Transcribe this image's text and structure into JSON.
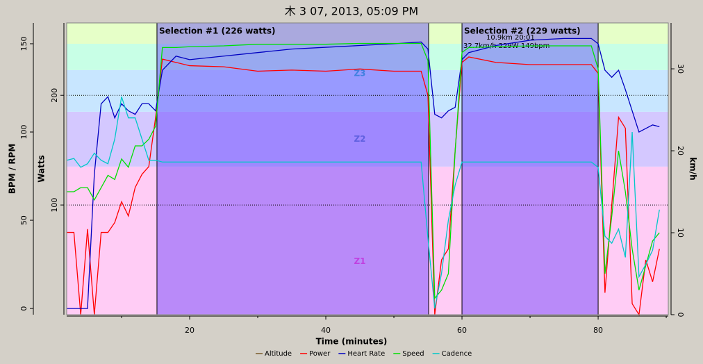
{
  "chart_data": {
    "type": "line",
    "title": "木 3 07, 2013, 05:09 PM",
    "x_label": "Time (minutes)",
    "y_label": "BPM / RPM",
    "y2_label": "Watts",
    "y3_label": "km/h",
    "xlim": [
      1.94,
      90.3
    ],
    "xticks": [
      20,
      40,
      60,
      80
    ],
    "ylim": [
      -3.5,
      161.8
    ],
    "yticks": [
      0,
      50,
      100,
      150
    ],
    "y2lim": [
      0,
      266
    ],
    "y2ticks": [
      100,
      200
    ],
    "y3lim": [
      0,
      35.6
    ],
    "y3ticks": [
      0,
      10,
      20,
      30
    ],
    "grid": true,
    "zones": [
      {
        "name": "Z1",
        "lo": 0,
        "hi": 135,
        "color": "#ffccf5"
      },
      {
        "name": "Z2",
        "lo": 135,
        "hi": 185,
        "color": "#d4c8ff"
      },
      {
        "name": "Z3",
        "lo": 185,
        "hi": 223,
        "color": "#c8e6ff"
      },
      {
        "lo": 223,
        "hi": 247,
        "color": "#c8ffe6"
      },
      {
        "lo": 247,
        "hi": 266,
        "color": "#e6ffc8"
      }
    ],
    "selections": [
      {
        "label": "Selection #1 (226 watts)",
        "from": 15.2,
        "to": 55.1
      },
      {
        "label": "Selection #2 (229 watts)",
        "from": 60,
        "to": 80,
        "annotations": [
          "10.9km 20:01",
          "32.7km/h 229W 149bpm"
        ]
      }
    ],
    "x": [
      2,
      3,
      4,
      5,
      6,
      7,
      8,
      9,
      10,
      11,
      12,
      13,
      14,
      15,
      16,
      18,
      20,
      25,
      30,
      35,
      40,
      45,
      50,
      54,
      55,
      56,
      57,
      58,
      59,
      60,
      61,
      65,
      70,
      75,
      79,
      80,
      81,
      82,
      83,
      84,
      85,
      86,
      87,
      88,
      89
    ],
    "series": [
      {
        "name": "Altitude",
        "color": "#7a5a2a"
      },
      {
        "name": "Power",
        "color": "#ff0000",
        "axis": "y2",
        "values": [
          75,
          75,
          0,
          78,
          0,
          75,
          75,
          84,
          103,
          90,
          116,
          128,
          135,
          180,
          233,
          230,
          227,
          226,
          222,
          223,
          222,
          224,
          222,
          222,
          200,
          0,
          50,
          60,
          150,
          230,
          235,
          230,
          228,
          228,
          228,
          220,
          20,
          100,
          180,
          170,
          10,
          0,
          50,
          30,
          60
        ]
      },
      {
        "name": "Heart Rate",
        "color": "#0000c0",
        "axis": "y",
        "values": [
          0,
          0,
          0,
          0,
          76,
          116,
          120,
          108,
          116,
          112,
          110,
          116,
          116,
          112,
          135,
          143,
          141,
          143,
          145,
          147,
          148,
          149,
          150,
          151,
          147,
          110,
          108,
          112,
          114,
          141,
          145,
          149,
          152,
          153,
          153,
          150,
          135,
          131,
          135,
          124,
          112,
          100,
          102,
          104,
          103
        ]
      },
      {
        "name": "Speed",
        "color": "#00e000",
        "axis": "y3",
        "values": [
          15,
          15,
          15.5,
          15.5,
          14,
          15.5,
          17,
          16.5,
          19,
          18,
          20.6,
          20.6,
          21.4,
          23,
          32.6,
          32.6,
          32.7,
          32.8,
          33,
          33,
          33,
          33.1,
          33.1,
          33.1,
          31,
          2,
          3,
          5,
          20,
          32,
          32.6,
          32.7,
          32.8,
          32.8,
          32.8,
          30,
          5,
          12,
          20,
          15,
          8,
          3,
          6,
          9,
          10
        ]
      },
      {
        "name": "Cadence",
        "color": "#00c8c8",
        "axis": "y",
        "values": [
          84,
          85,
          80,
          82,
          88,
          84,
          82,
          96,
          120,
          108,
          108,
          96,
          84,
          84,
          83,
          83,
          83,
          83,
          83,
          83,
          83,
          83,
          83,
          83,
          40,
          0,
          20,
          50,
          70,
          83,
          83,
          83,
          83,
          83,
          83,
          80,
          41,
          37,
          45,
          29,
          100,
          18,
          25,
          33,
          56
        ]
      }
    ]
  }
}
